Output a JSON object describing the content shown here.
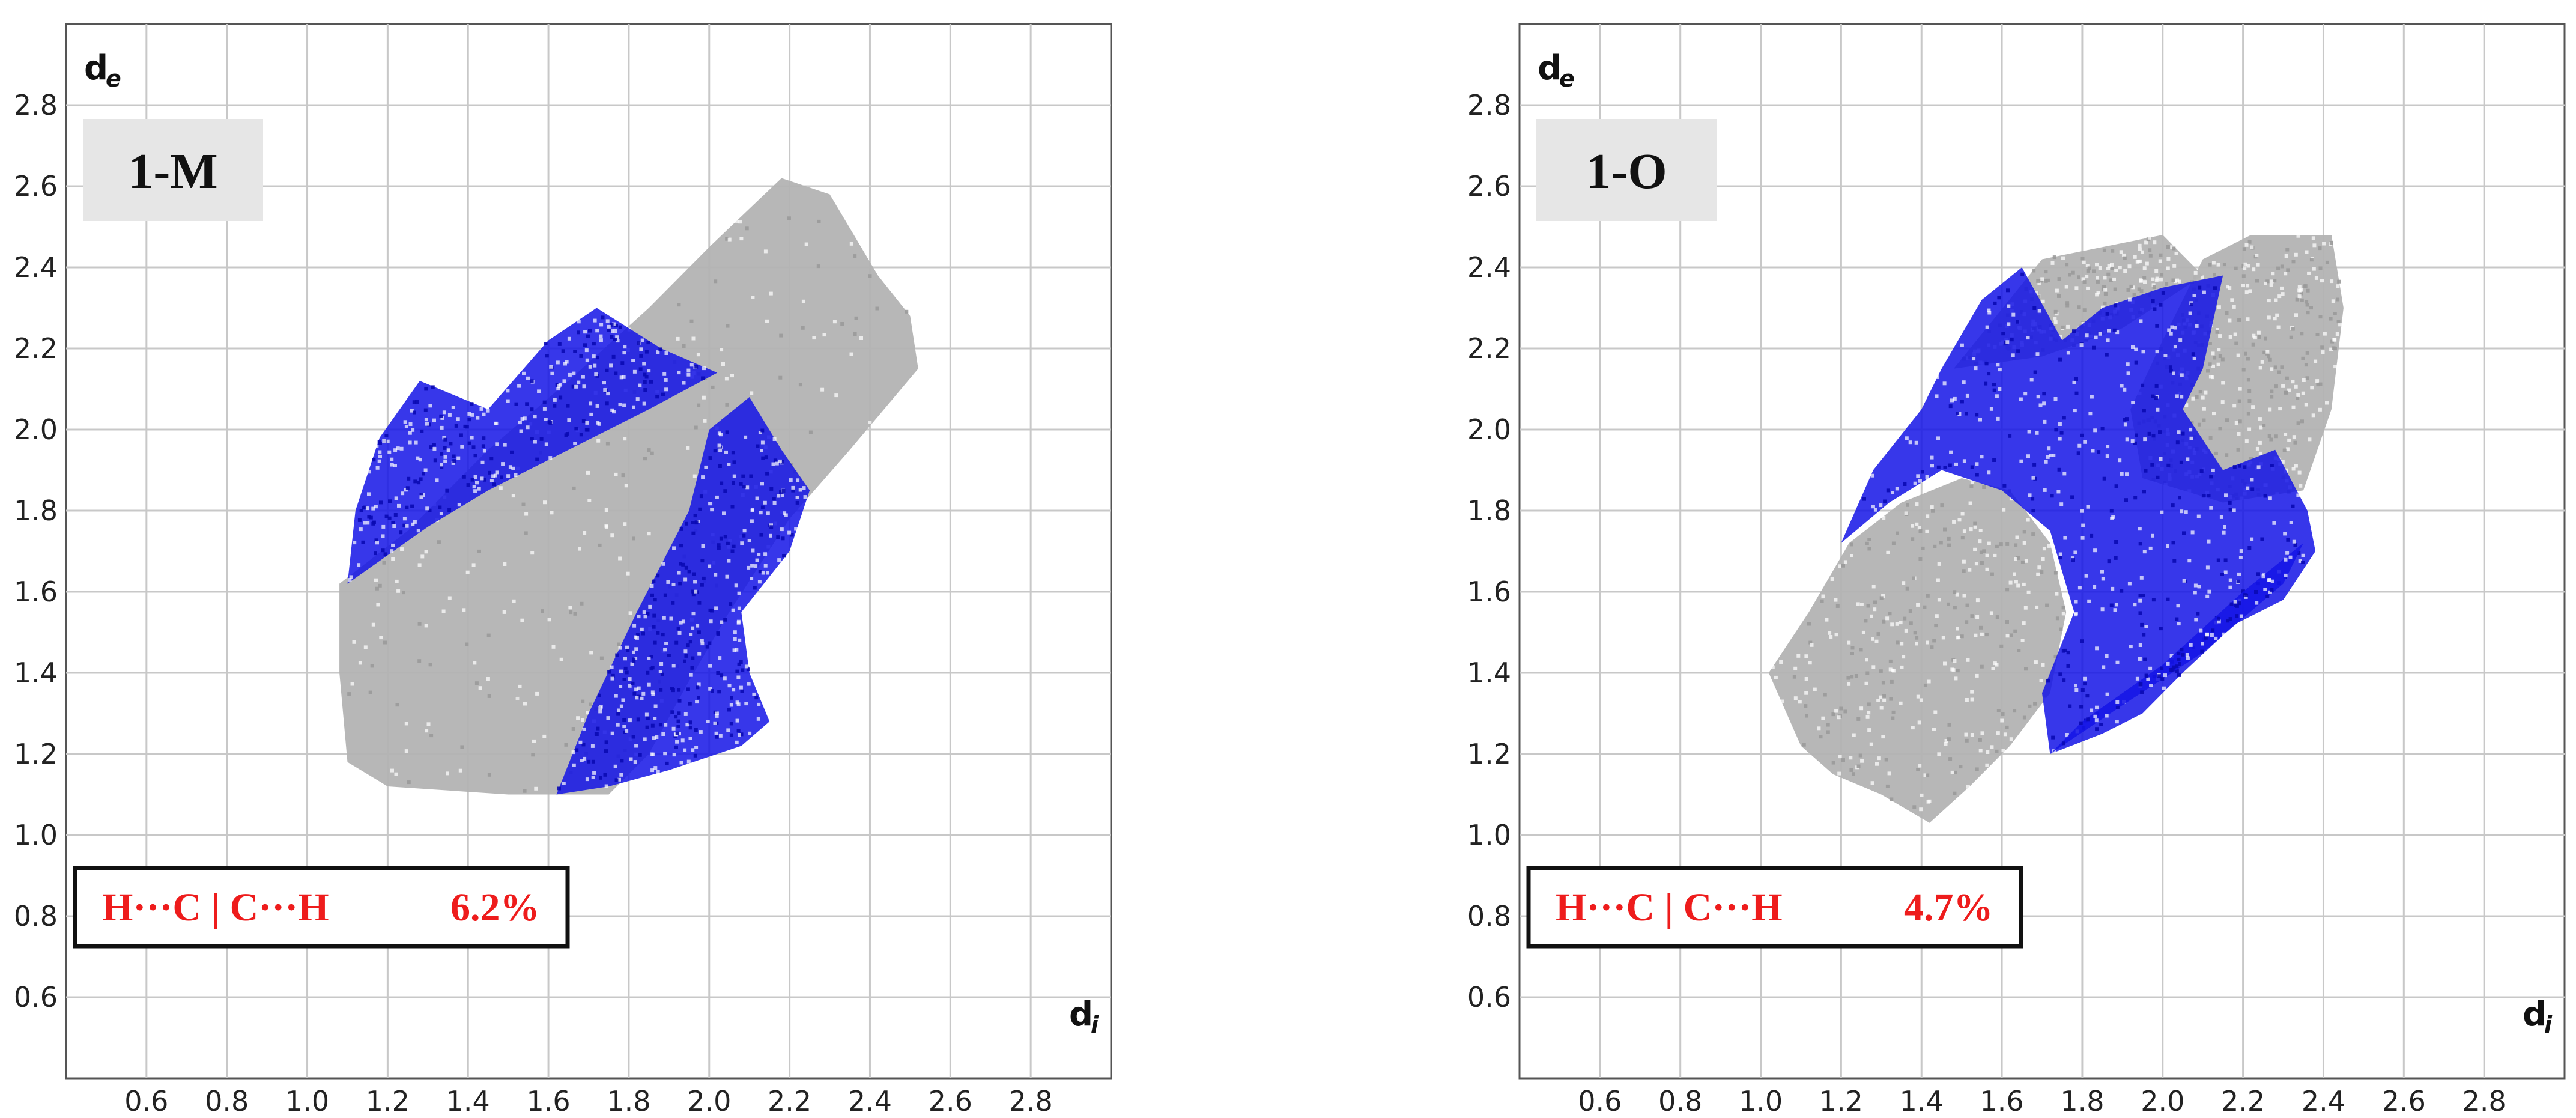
{
  "chart_data": [
    {
      "type": "scatter",
      "panel_label": "1-M",
      "contact_label": "H···C | C···H",
      "percentage": "6.2%",
      "x_axis": {
        "symbol": "d",
        "subscript": "i",
        "ticks": [
          "0.6",
          "0.8",
          "1.0",
          "1.2",
          "1.4",
          "1.6",
          "1.8",
          "2.0",
          "2.2",
          "2.4",
          "2.6",
          "2.8"
        ],
        "range": [
          0.4,
          3.0
        ]
      },
      "y_axis": {
        "symbol": "d",
        "subscript": "e",
        "ticks": [
          "0.6",
          "0.8",
          "1.0",
          "1.2",
          "1.4",
          "1.6",
          "1.8",
          "2.0",
          "2.2",
          "2.4",
          "2.6",
          "2.8"
        ],
        "range": [
          0.4,
          3.0
        ]
      },
      "grid": true,
      "colors": {
        "total": "#b3b3b3",
        "highlight": "#1414e6"
      },
      "series": [
        {
          "role": "total",
          "regions": [
            [
              [
                1.08,
                1.4
              ],
              [
                1.08,
                1.62
              ],
              [
                1.25,
                1.75
              ],
              [
                1.45,
                1.95
              ],
              [
                1.65,
                2.12
              ],
              [
                1.85,
                2.3
              ],
              [
                2.0,
                2.45
              ],
              [
                2.18,
                2.62
              ],
              [
                2.3,
                2.58
              ],
              [
                2.42,
                2.38
              ],
              [
                2.5,
                2.28
              ],
              [
                2.52,
                2.15
              ],
              [
                2.35,
                1.95
              ],
              [
                2.2,
                1.78
              ],
              [
                2.05,
                1.55
              ],
              [
                1.95,
                1.38
              ],
              [
                1.85,
                1.2
              ],
              [
                1.75,
                1.1
              ],
              [
                1.5,
                1.1
              ],
              [
                1.2,
                1.12
              ],
              [
                1.1,
                1.18
              ]
            ]
          ]
        },
        {
          "role": "highlight",
          "regions": [
            [
              [
                1.1,
                1.62
              ],
              [
                1.12,
                1.8
              ],
              [
                1.18,
                1.98
              ],
              [
                1.28,
                2.12
              ],
              [
                1.45,
                2.05
              ],
              [
                1.6,
                2.22
              ],
              [
                1.72,
                2.3
              ],
              [
                1.88,
                2.2
              ],
              [
                2.02,
                2.14
              ],
              [
                1.85,
                2.05
              ],
              [
                1.65,
                1.95
              ],
              [
                1.45,
                1.85
              ],
              [
                1.3,
                1.76
              ]
            ],
            [
              [
                1.62,
                1.1
              ],
              [
                1.7,
                1.3
              ],
              [
                1.82,
                1.55
              ],
              [
                1.95,
                1.8
              ],
              [
                2.0,
                2.0
              ],
              [
                2.1,
                2.08
              ],
              [
                2.18,
                1.95
              ],
              [
                2.25,
                1.85
              ],
              [
                2.2,
                1.7
              ],
              [
                2.08,
                1.55
              ],
              [
                2.1,
                1.4
              ],
              [
                2.15,
                1.28
              ],
              [
                2.08,
                1.22
              ],
              [
                1.9,
                1.16
              ],
              [
                1.75,
                1.12
              ]
            ]
          ]
        }
      ]
    },
    {
      "type": "scatter",
      "panel_label": "1-O",
      "contact_label": "H···C | C···H",
      "percentage": "4.7%",
      "x_axis": {
        "symbol": "d",
        "subscript": "i",
        "ticks": [
          "0.6",
          "0.8",
          "1.0",
          "1.2",
          "1.4",
          "1.6",
          "1.8",
          "2.0",
          "2.2",
          "2.4",
          "2.6",
          "2.8"
        ],
        "range": [
          0.4,
          3.0
        ]
      },
      "y_axis": {
        "symbol": "d",
        "subscript": "e",
        "ticks": [
          "0.6",
          "0.8",
          "1.0",
          "1.2",
          "1.4",
          "1.6",
          "1.8",
          "2.0",
          "2.2",
          "2.4",
          "2.6",
          "2.8"
        ],
        "range": [
          0.4,
          3.0
        ]
      },
      "grid": true,
      "colors": {
        "total": "#b3b3b3",
        "highlight": "#1414e6"
      },
      "series": [
        {
          "role": "total",
          "regions": [
            [
              [
                1.02,
                1.4
              ],
              [
                1.12,
                1.55
              ],
              [
                1.22,
                1.72
              ],
              [
                1.35,
                1.82
              ],
              [
                1.5,
                1.88
              ],
              [
                1.62,
                1.85
              ],
              [
                1.72,
                1.72
              ],
              [
                1.76,
                1.55
              ],
              [
                1.72,
                1.35
              ],
              [
                1.62,
                1.22
              ],
              [
                1.52,
                1.12
              ],
              [
                1.42,
                1.03
              ],
              [
                1.3,
                1.1
              ],
              [
                1.18,
                1.15
              ],
              [
                1.1,
                1.22
              ]
            ],
            [
              [
                1.95,
                1.88
              ],
              [
                1.92,
                2.05
              ],
              [
                2.0,
                2.22
              ],
              [
                2.1,
                2.42
              ],
              [
                2.22,
                2.48
              ],
              [
                2.42,
                2.48
              ],
              [
                2.45,
                2.3
              ],
              [
                2.42,
                2.05
              ],
              [
                2.35,
                1.85
              ],
              [
                2.15,
                1.82
              ]
            ],
            [
              [
                1.48,
                2.15
              ],
              [
                1.7,
                2.42
              ],
              [
                2.0,
                2.48
              ],
              [
                2.1,
                2.38
              ],
              [
                1.9,
                2.25
              ],
              [
                1.7,
                2.18
              ]
            ]
          ]
        },
        {
          "role": "highlight",
          "regions": [
            [
              [
                1.2,
                1.72
              ],
              [
                1.28,
                1.9
              ],
              [
                1.4,
                2.05
              ],
              [
                1.45,
                2.15
              ],
              [
                1.55,
                2.32
              ],
              [
                1.65,
                2.4
              ],
              [
                1.75,
                2.22
              ],
              [
                1.85,
                2.3
              ],
              [
                2.0,
                2.35
              ],
              [
                2.15,
                2.38
              ],
              [
                2.1,
                2.15
              ],
              [
                2.05,
                2.05
              ],
              [
                2.15,
                1.9
              ],
              [
                2.28,
                1.95
              ],
              [
                2.36,
                1.8
              ],
              [
                2.38,
                1.7
              ],
              [
                2.3,
                1.58
              ],
              [
                2.18,
                1.52
              ],
              [
                2.05,
                1.4
              ],
              [
                1.95,
                1.3
              ],
              [
                1.85,
                1.25
              ],
              [
                1.72,
                1.2
              ],
              [
                1.7,
                1.35
              ],
              [
                1.78,
                1.55
              ],
              [
                1.72,
                1.75
              ],
              [
                1.6,
                1.85
              ],
              [
                1.45,
                1.9
              ],
              [
                1.32,
                1.82
              ]
            ],
            [
              [
                1.72,
                1.2
              ],
              [
                1.9,
                1.32
              ],
              [
                2.1,
                1.45
              ],
              [
                2.3,
                1.62
              ],
              [
                2.35,
                1.72
              ],
              [
                2.2,
                1.6
              ],
              [
                2.0,
                1.42
              ],
              [
                1.8,
                1.28
              ]
            ]
          ]
        }
      ]
    }
  ]
}
